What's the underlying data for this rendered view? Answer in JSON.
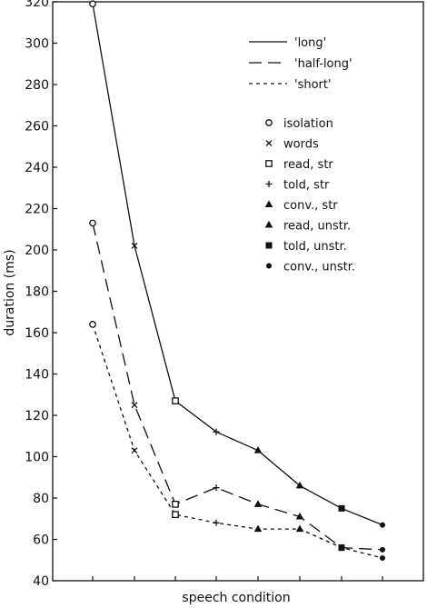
{
  "chart_data": {
    "type": "line",
    "title": "",
    "xlabel": "speech condition",
    "ylabel": "duration (ms)",
    "ylim": [
      40,
      320
    ],
    "yticks": [
      40,
      60,
      80,
      100,
      120,
      140,
      160,
      180,
      200,
      220,
      240,
      260,
      280,
      300,
      320
    ],
    "grid": false,
    "conditions": [
      "isolation",
      "words",
      "read, str",
      "told, str",
      "conv., str",
      "read, unstr",
      "told, unstr",
      "conv., unstr"
    ],
    "series": [
      {
        "name": "'long'",
        "dash": "solid",
        "values": [
          319,
          202,
          127,
          112,
          103,
          86,
          75,
          67
        ]
      },
      {
        "name": "'half-long'",
        "dash": "long",
        "values": [
          213,
          125,
          77,
          85,
          77,
          71,
          56,
          55
        ]
      },
      {
        "name": "'short'",
        "dash": "short",
        "values": [
          164,
          103,
          72,
          68,
          65,
          65,
          56,
          51
        ]
      }
    ],
    "legend": {
      "placement": "top-right",
      "lines": [
        {
          "label": "'long'",
          "dash": "solid"
        },
        {
          "label": "'half-long'",
          "dash": "long"
        },
        {
          "label": "'short'",
          "dash": "short"
        }
      ],
      "markers": [
        {
          "label": "isolation",
          "marker": "circle-open"
        },
        {
          "label": "words",
          "marker": "x"
        },
        {
          "label": "read, str",
          "marker": "square-open"
        },
        {
          "label": "told, str",
          "marker": "plus"
        },
        {
          "label": "conv., str",
          "marker": "triangle"
        },
        {
          "label": "read, unstr.",
          "marker": "triangle"
        },
        {
          "label": "told, unstr.",
          "marker": "square-filled"
        },
        {
          "label": "conv., unstr.",
          "marker": "dot"
        }
      ]
    },
    "markers_by_condition": [
      "circle-open",
      "x",
      "square-open",
      "plus",
      "triangle",
      "triangle",
      "square-filled",
      "dot"
    ],
    "line_color": "#111111"
  }
}
